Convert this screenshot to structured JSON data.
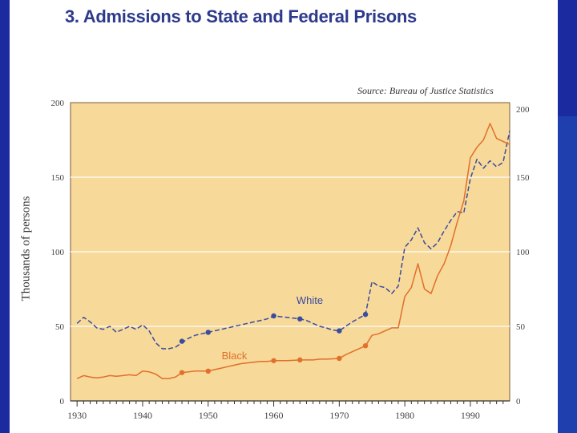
{
  "title": "3.  Admissions to State and Federal Prisons",
  "source": "Source:  Bureau of Justice Statistics",
  "chart_data": {
    "type": "line",
    "title": "Admissions to State and Federal Prisons",
    "ylabel": "Thousands of persons",
    "xlabel": "",
    "xlim": [
      1929,
      1996
    ],
    "ylim": [
      0,
      200
    ],
    "x_ticks": [
      "1930",
      "1940",
      "1950",
      "1960",
      "1970",
      "1980",
      "1990"
    ],
    "y_ticks": [
      "0",
      "50",
      "100",
      "150",
      "200"
    ],
    "y_ticks_right": [
      "0",
      "50",
      "100",
      "150",
      "200"
    ],
    "series": [
      {
        "name": "White",
        "color": "#3a4c9e",
        "style": "dashed",
        "points": [
          [
            1930,
            52
          ],
          [
            1931,
            56
          ],
          [
            1932,
            53
          ],
          [
            1933,
            49
          ],
          [
            1934,
            48
          ],
          [
            1935,
            50
          ],
          [
            1936,
            46
          ],
          [
            1937,
            48
          ],
          [
            1938,
            50
          ],
          [
            1939,
            48
          ],
          [
            1940,
            51
          ],
          [
            1941,
            47
          ],
          [
            1942,
            39
          ],
          [
            1943,
            35
          ],
          [
            1944,
            35
          ],
          [
            1945,
            36
          ],
          [
            1946,
            39
          ],
          [
            1947,
            42
          ],
          [
            1948,
            44
          ],
          [
            1949,
            45
          ],
          [
            1950,
            46
          ],
          [
            1951,
            47
          ],
          [
            1952,
            48
          ],
          [
            1953,
            49
          ],
          [
            1954,
            50
          ],
          [
            1955,
            51
          ],
          [
            1956,
            52
          ],
          [
            1957,
            53
          ],
          [
            1958,
            54
          ],
          [
            1959,
            55
          ],
          [
            1960,
            57
          ],
          [
            1961,
            56.5
          ],
          [
            1962,
            56
          ],
          [
            1963,
            55.5
          ],
          [
            1964,
            55
          ],
          [
            1965,
            54
          ],
          [
            1966,
            52
          ],
          [
            1967,
            50
          ],
          [
            1968,
            49
          ],
          [
            1969,
            47.5
          ],
          [
            1970,
            47
          ],
          [
            1971,
            50
          ],
          [
            1972,
            53
          ],
          [
            1973,
            55.5
          ],
          [
            1974,
            58
          ],
          [
            1975,
            80
          ],
          [
            1976,
            77
          ],
          [
            1977,
            76
          ],
          [
            1978,
            72
          ],
          [
            1979,
            77
          ],
          [
            1980,
            103
          ],
          [
            1981,
            108
          ],
          [
            1982,
            116
          ],
          [
            1983,
            106
          ],
          [
            1984,
            102
          ],
          [
            1985,
            106
          ],
          [
            1986,
            114
          ],
          [
            1987,
            121
          ],
          [
            1988,
            127
          ],
          [
            1989,
            126
          ],
          [
            1990,
            149
          ],
          [
            1991,
            162
          ],
          [
            1992,
            156
          ],
          [
            1993,
            161
          ],
          [
            1994,
            157
          ],
          [
            1995,
            160
          ],
          [
            1996,
            181
          ]
        ],
        "markers": [
          [
            1946,
            40
          ],
          [
            1950,
            46
          ],
          [
            1960,
            57
          ],
          [
            1964,
            55
          ],
          [
            1970,
            47
          ],
          [
            1974,
            58
          ]
        ],
        "label": "White"
      },
      {
        "name": "Black",
        "color": "#e0702a",
        "style": "solid",
        "points": [
          [
            1930,
            15
          ],
          [
            1931,
            17
          ],
          [
            1932,
            16
          ],
          [
            1933,
            15.5
          ],
          [
            1934,
            16
          ],
          [
            1935,
            17
          ],
          [
            1936,
            16.5
          ],
          [
            1937,
            17
          ],
          [
            1938,
            17.5
          ],
          [
            1939,
            17
          ],
          [
            1940,
            20
          ],
          [
            1941,
            19.5
          ],
          [
            1942,
            18
          ],
          [
            1943,
            15
          ],
          [
            1944,
            15
          ],
          [
            1945,
            16
          ],
          [
            1946,
            19
          ],
          [
            1947,
            19.5
          ],
          [
            1948,
            20
          ],
          [
            1949,
            20
          ],
          [
            1950,
            20
          ],
          [
            1951,
            21
          ],
          [
            1952,
            22
          ],
          [
            1953,
            23
          ],
          [
            1954,
            24
          ],
          [
            1955,
            25
          ],
          [
            1956,
            25.5
          ],
          [
            1957,
            26
          ],
          [
            1958,
            26.5
          ],
          [
            1959,
            26.5
          ],
          [
            1960,
            27
          ],
          [
            1961,
            27
          ],
          [
            1962,
            27
          ],
          [
            1963,
            27.2
          ],
          [
            1964,
            27.5
          ],
          [
            1965,
            27.5
          ],
          [
            1966,
            27.5
          ],
          [
            1967,
            28
          ],
          [
            1968,
            28
          ],
          [
            1969,
            28.2
          ],
          [
            1970,
            28.5
          ],
          [
            1971,
            31
          ],
          [
            1972,
            33
          ],
          [
            1973,
            35
          ],
          [
            1974,
            37
          ],
          [
            1975,
            44
          ],
          [
            1976,
            45
          ],
          [
            1977,
            47
          ],
          [
            1978,
            49
          ],
          [
            1979,
            49
          ],
          [
            1980,
            70
          ],
          [
            1981,
            76
          ],
          [
            1982,
            92
          ],
          [
            1983,
            75
          ],
          [
            1984,
            72
          ],
          [
            1985,
            84
          ],
          [
            1986,
            92
          ],
          [
            1987,
            104
          ],
          [
            1988,
            120
          ],
          [
            1989,
            134
          ],
          [
            1990,
            163
          ],
          [
            1991,
            170
          ],
          [
            1992,
            175
          ],
          [
            1993,
            186
          ],
          [
            1994,
            176
          ],
          [
            1995,
            174
          ],
          [
            1996,
            172
          ]
        ],
        "markers": [
          [
            1946,
            19
          ],
          [
            1950,
            20
          ],
          [
            1960,
            27
          ],
          [
            1964,
            27.5
          ],
          [
            1970,
            28.5
          ],
          [
            1974,
            37
          ]
        ],
        "label": "Black"
      }
    ]
  }
}
